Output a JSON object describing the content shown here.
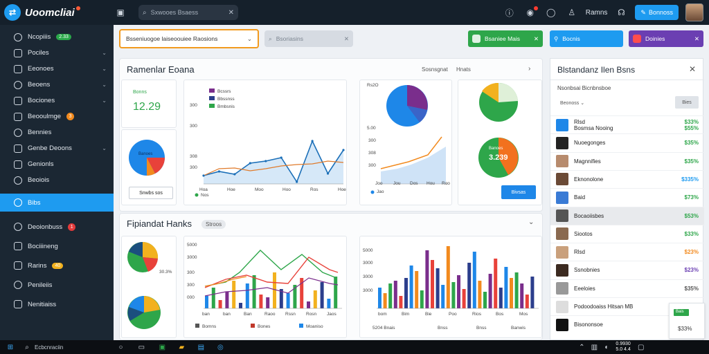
{
  "app": {
    "name": "Uoomcliai",
    "logo_glyph": "⇄"
  },
  "topbar": {
    "search_placeholder": "Sxwooes Bsaess",
    "user_label": "Ramns",
    "button_label": "Bonnoss"
  },
  "sidebar": {
    "items": [
      {
        "label": "Ncopiiis",
        "badge": "2.33",
        "badge_color": "green",
        "chevron": false
      },
      {
        "label": "Pociles",
        "chevron": true
      },
      {
        "label": "Eeonoes",
        "chevron": true
      },
      {
        "label": "Beoens",
        "chevron": true
      },
      {
        "label": "Bociones",
        "chevron": true
      },
      {
        "label": "Beooulmge",
        "badge": "3",
        "badge_color": "orange",
        "chevron": false
      },
      {
        "label": "Bennies",
        "chevron": false
      },
      {
        "label": "Genbe Deoons",
        "chevron": true
      },
      {
        "label": "Genionls",
        "chevron": false
      },
      {
        "label": "Beoiois",
        "chevron": false
      }
    ],
    "active_item": {
      "label": "Bibs"
    },
    "bottom_items": [
      {
        "label": "Deoionbuss",
        "badge": "1",
        "badge_color": "red"
      },
      {
        "label": "Bociiineng"
      },
      {
        "label": "Rarins",
        "badge": "40",
        "badge_color": "yellow"
      },
      {
        "label": "Penileiis"
      },
      {
        "label": "Nenitiaiss"
      }
    ]
  },
  "filters": {
    "dropdown_value": "Bsseniuogoe laiseoouiee Raosions",
    "search_placeholder": "Bsoriasins",
    "buttons": [
      {
        "label": "Bsaniee Mais",
        "color": "#2ea64a"
      },
      {
        "label": "Bocnis",
        "color": "#1e9bf0"
      },
      {
        "label": "Doinies",
        "color": "#6b3fb2"
      }
    ]
  },
  "panel1": {
    "title": "Ramenlar Eoana",
    "meta_label": "Sosnsgnat",
    "meta_value": "Hnats",
    "kpi_label": "Bonns",
    "kpi_value": "12.29",
    "pie_label": "Banoes",
    "button_label": "Snwbs sos",
    "line_legend": [
      "Bcssrs",
      "Bbssnss",
      "Bmbsnis"
    ],
    "line_y_ticks": [
      "300",
      "300",
      "308",
      "300"
    ],
    "line_x_ticks": [
      "Hoa",
      "Hoe",
      "Moo",
      "Hoo",
      "Ros",
      "Hoe"
    ],
    "line_foot": "Nos",
    "line_a": [
      138,
      132,
      136,
      120,
      117,
      112,
      147,
      88,
      135,
      101
    ],
    "line_b": [
      138,
      128,
      127,
      131,
      128,
      124,
      122,
      121,
      117,
      119
    ],
    "pie2_values": "Rs2O",
    "pie2_y_ticks": [
      "5.00",
      "300",
      "308",
      "300"
    ],
    "pie2_x_ticks": [
      "Joo",
      "Jou",
      "Dos",
      "Hou",
      "Roo"
    ],
    "pie2_legend": "Jao",
    "donut_value": "Banoes",
    "donut_figure": "3.239",
    "donut_button": "Bivsas"
  },
  "panel2": {
    "title": "Fipiandat Hanks",
    "tag": "Stroos",
    "pie_a_value": "30.3%",
    "bar1_legend": [
      "Bomns",
      "Bones",
      "Moaniso"
    ],
    "bar1_y_ticks": [
      "5000",
      "3000",
      "300",
      "300",
      "000"
    ],
    "bar1_x_ticks": [
      "ban",
      "ban",
      "Ban",
      "Raoo",
      "Rssn",
      "Rosn",
      "Jaos"
    ],
    "bar2_footer": [
      "5204 Bnais",
      "Bnss",
      "Bnss",
      "Banwis"
    ],
    "bar2_y_ticks": [
      "5000",
      "3000",
      "3000",
      "3000"
    ],
    "bar2_x_ticks": [
      "bom",
      "Bim",
      "Bie",
      "Poo",
      "Rios",
      "Bos",
      "Mos"
    ]
  },
  "right_panel": {
    "title": "Blstandanz Ilen Bsns",
    "subtitle": "Nsonbsai Bicnbnsboe",
    "filter_label": "Beonoss",
    "filter_button": "Bies",
    "rows": [
      {
        "name": "Rlsd",
        "sub": "Bosmsa Nooing",
        "value": "$33%",
        "value2": "$55%",
        "color": "#2ea64a"
      },
      {
        "name": "Nuoegonges",
        "value": "$35%",
        "color": "#2ea64a"
      },
      {
        "name": "Magnnifies",
        "value": "$35%",
        "color": "#2ea64a"
      },
      {
        "name": "Eknonolone",
        "value": "$335%",
        "color": "#1e9bf0"
      },
      {
        "name": "Baid",
        "value": "$73%",
        "color": "#2ea64a"
      },
      {
        "name": "Bocaoiisbes",
        "value": "$53%",
        "color": "#2ea64a",
        "highlight": true
      },
      {
        "name": "Siootos",
        "value": "$33%",
        "color": "#2ea64a"
      },
      {
        "name": "Rlsd",
        "value": "$23%",
        "color": "#f28a1e"
      },
      {
        "name": "Ssnobnies",
        "value": "$23%",
        "color": "#6b3fb2"
      },
      {
        "name": "Eeeloies",
        "value": "$35%",
        "color": "#555555"
      },
      {
        "name": "Podoodoaiss Hitsan MB",
        "value": "",
        "color": "#555555"
      },
      {
        "name": "Bisononsoe",
        "value": "",
        "color": "#555555"
      }
    ],
    "mini_value": "$33%",
    "mini_top": "Bais"
  },
  "taskbar": {
    "search_placeholder": "Ecbcnraciin",
    "time": "0.9930",
    "date": "5.0 4.4"
  }
}
